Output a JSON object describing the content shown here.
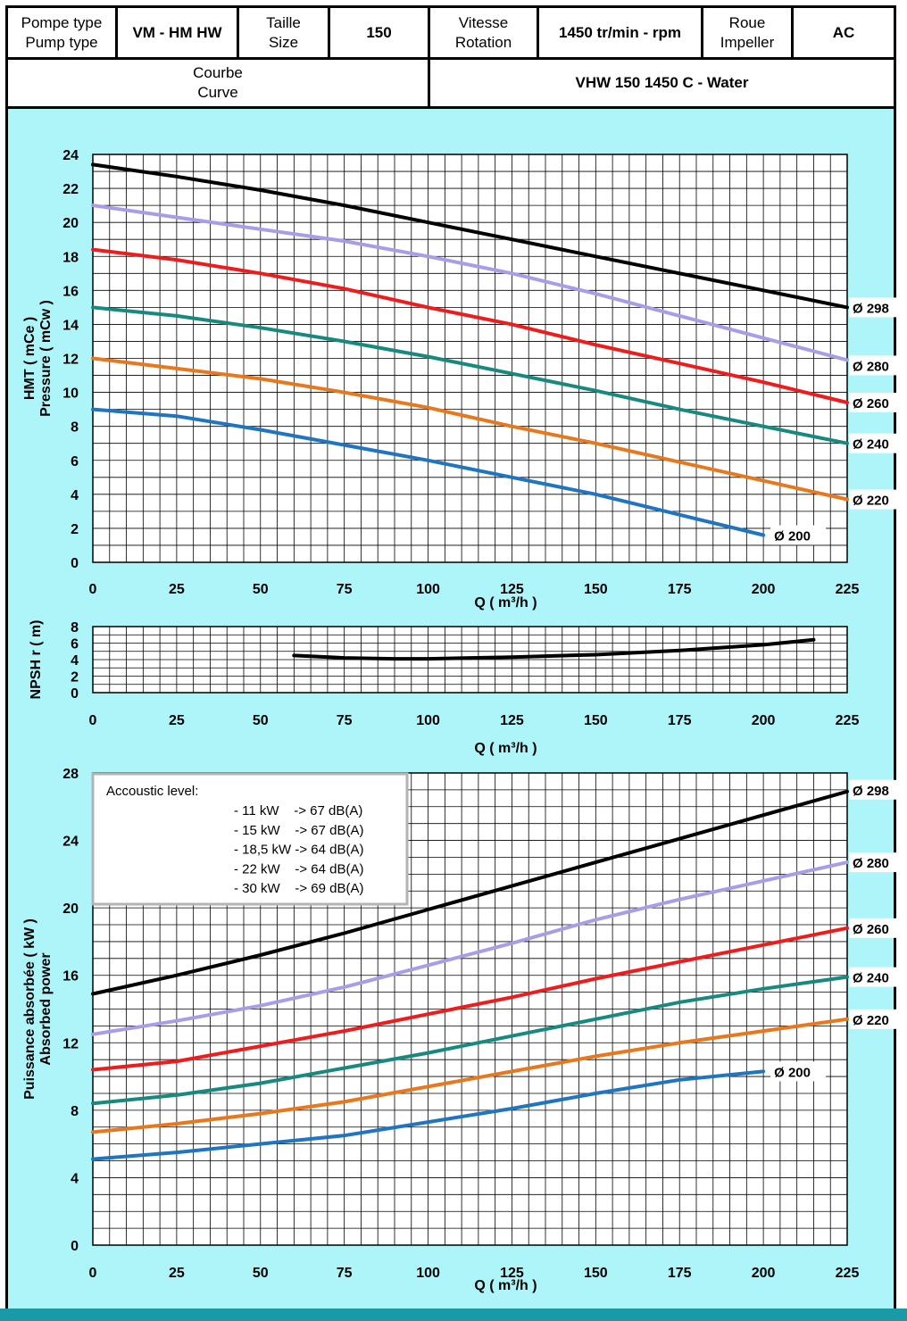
{
  "header": {
    "pump_type_label": [
      "Pompe type",
      "Pump type"
    ],
    "pump_type_value": "VM - HM HW",
    "size_label": [
      "Taille",
      "Size"
    ],
    "size_value": "150",
    "speed_label": [
      "Vitesse",
      "Rotation"
    ],
    "speed_value": "1450 tr/min - rpm",
    "impeller_label": [
      "Roue",
      "Impeller"
    ],
    "impeller_value": "AC",
    "curve_label": [
      "Courbe",
      "Curve"
    ],
    "curve_value": "VHW 150 1450 C - Water"
  },
  "legend_box": {
    "title": "Accoustic level:",
    "lines": [
      "- 11 kW    -> 67 dB(A)",
      "- 15 kW    -> 67 dB(A)",
      "- 18,5 kW -> 64 dB(A)",
      "- 22 kW    -> 64 dB(A)",
      "- 30 kW    -> 69 dB(A)"
    ]
  },
  "chart_data": [
    {
      "type": "line",
      "ylabel_lines": [
        "HMT ( mCe )",
        "Pressure ( mCw )"
      ],
      "xlabel": "Q ( m³/h )",
      "xlim": [
        0,
        225
      ],
      "ylim": [
        0,
        24
      ],
      "xticks": [
        0,
        25,
        50,
        75,
        100,
        125,
        150,
        175,
        200,
        225
      ],
      "yticks": [
        0,
        2,
        4,
        6,
        8,
        10,
        12,
        14,
        16,
        18,
        20,
        22,
        24
      ],
      "grid": true,
      "series": [
        {
          "name": "Ø 298",
          "color": "#000000",
          "x": [
            0,
            25,
            50,
            75,
            100,
            125,
            150,
            175,
            200,
            225
          ],
          "y": [
            23.4,
            22.7,
            21.9,
            21.0,
            20.0,
            19.0,
            18.0,
            17.0,
            16.0,
            15.0
          ]
        },
        {
          "name": "Ø 280",
          "color": "#a89ee8",
          "x": [
            0,
            25,
            50,
            75,
            100,
            125,
            150,
            175,
            200,
            225
          ],
          "y": [
            21.0,
            20.3,
            19.6,
            18.9,
            18.0,
            17.0,
            15.8,
            14.5,
            13.2,
            11.9
          ]
        },
        {
          "name": "Ø 260",
          "color": "#ee1c1c",
          "x": [
            0,
            25,
            50,
            75,
            100,
            125,
            150,
            175,
            200,
            225
          ],
          "y": [
            18.4,
            17.8,
            17.0,
            16.1,
            15.0,
            14.0,
            12.8,
            11.7,
            10.6,
            9.4
          ]
        },
        {
          "name": "Ø 240",
          "color": "#178a80",
          "x": [
            0,
            25,
            50,
            75,
            100,
            125,
            150,
            175,
            200,
            225
          ],
          "y": [
            15.0,
            14.5,
            13.8,
            13.0,
            12.1,
            11.1,
            10.1,
            9.0,
            8.0,
            7.0
          ]
        },
        {
          "name": "Ø 220",
          "color": "#e8781e",
          "x": [
            0,
            25,
            50,
            75,
            100,
            125,
            150,
            175,
            200,
            225
          ],
          "y": [
            12.0,
            11.4,
            10.8,
            10.0,
            9.1,
            8.0,
            7.0,
            5.9,
            4.8,
            3.7
          ]
        },
        {
          "name": "Ø 200",
          "color": "#1f75c0",
          "x": [
            0,
            25,
            50,
            75,
            100,
            125,
            150,
            175,
            200
          ],
          "y": [
            9.0,
            8.6,
            7.8,
            6.9,
            6.0,
            5.0,
            4.0,
            2.8,
            1.6
          ]
        }
      ]
    },
    {
      "type": "line",
      "ylabel": "NPSH r ( m)",
      "xlabel": "Q ( m³/h )",
      "xlim": [
        0,
        225
      ],
      "ylim": [
        0,
        8
      ],
      "xticks": [
        0,
        25,
        50,
        75,
        100,
        125,
        150,
        175,
        200,
        225
      ],
      "yticks": [
        0,
        2,
        4,
        6,
        8
      ],
      "grid": true,
      "series": [
        {
          "color": "#000000",
          "x": [
            60,
            75,
            90,
            100,
            125,
            150,
            175,
            200,
            215
          ],
          "y": [
            4.5,
            4.2,
            4.1,
            4.1,
            4.3,
            4.6,
            5.1,
            5.8,
            6.4
          ]
        }
      ]
    },
    {
      "type": "line",
      "ylabel_lines": [
        "Puissance absorbée ( kW )",
        "Absorbed power"
      ],
      "xlabel": "Q ( m³/h )",
      "xlim": [
        0,
        225
      ],
      "ylim": [
        0,
        28
      ],
      "xticks": [
        0,
        25,
        50,
        75,
        100,
        125,
        150,
        175,
        200,
        225
      ],
      "yticks": [
        0,
        4,
        8,
        12,
        16,
        20,
        24,
        28
      ],
      "grid": true,
      "legend": "top-left",
      "series": [
        {
          "name": "Ø 298",
          "color": "#000000",
          "x": [
            0,
            25,
            50,
            75,
            100,
            125,
            150,
            175,
            200,
            225
          ],
          "y": [
            14.9,
            16.0,
            17.2,
            18.5,
            19.9,
            21.3,
            22.7,
            24.1,
            25.5,
            26.9
          ]
        },
        {
          "name": "Ø 280",
          "color": "#a89ee8",
          "x": [
            0,
            25,
            50,
            75,
            100,
            125,
            150,
            175,
            200,
            225
          ],
          "y": [
            12.5,
            13.3,
            14.2,
            15.3,
            16.6,
            17.9,
            19.3,
            20.5,
            21.6,
            22.7
          ]
        },
        {
          "name": "Ø 260",
          "color": "#ee1c1c",
          "x": [
            0,
            25,
            50,
            75,
            100,
            125,
            150,
            175,
            200,
            225
          ],
          "y": [
            10.4,
            10.9,
            11.8,
            12.7,
            13.7,
            14.7,
            15.8,
            16.8,
            17.8,
            18.8
          ]
        },
        {
          "name": "Ø 240",
          "color": "#178a80",
          "x": [
            0,
            25,
            50,
            75,
            100,
            125,
            150,
            175,
            200,
            225
          ],
          "y": [
            8.4,
            8.9,
            9.6,
            10.5,
            11.4,
            12.4,
            13.4,
            14.4,
            15.2,
            15.9
          ]
        },
        {
          "name": "Ø 220",
          "color": "#e8781e",
          "x": [
            0,
            25,
            50,
            75,
            100,
            125,
            150,
            175,
            200,
            225
          ],
          "y": [
            6.7,
            7.2,
            7.8,
            8.5,
            9.4,
            10.3,
            11.2,
            12.0,
            12.7,
            13.4
          ]
        },
        {
          "name": "Ø 200",
          "color": "#1f75c0",
          "x": [
            0,
            25,
            50,
            75,
            100,
            125,
            150,
            175,
            200
          ],
          "y": [
            5.1,
            5.5,
            6.0,
            6.5,
            7.3,
            8.1,
            9.0,
            9.8,
            10.3
          ]
        }
      ]
    }
  ]
}
